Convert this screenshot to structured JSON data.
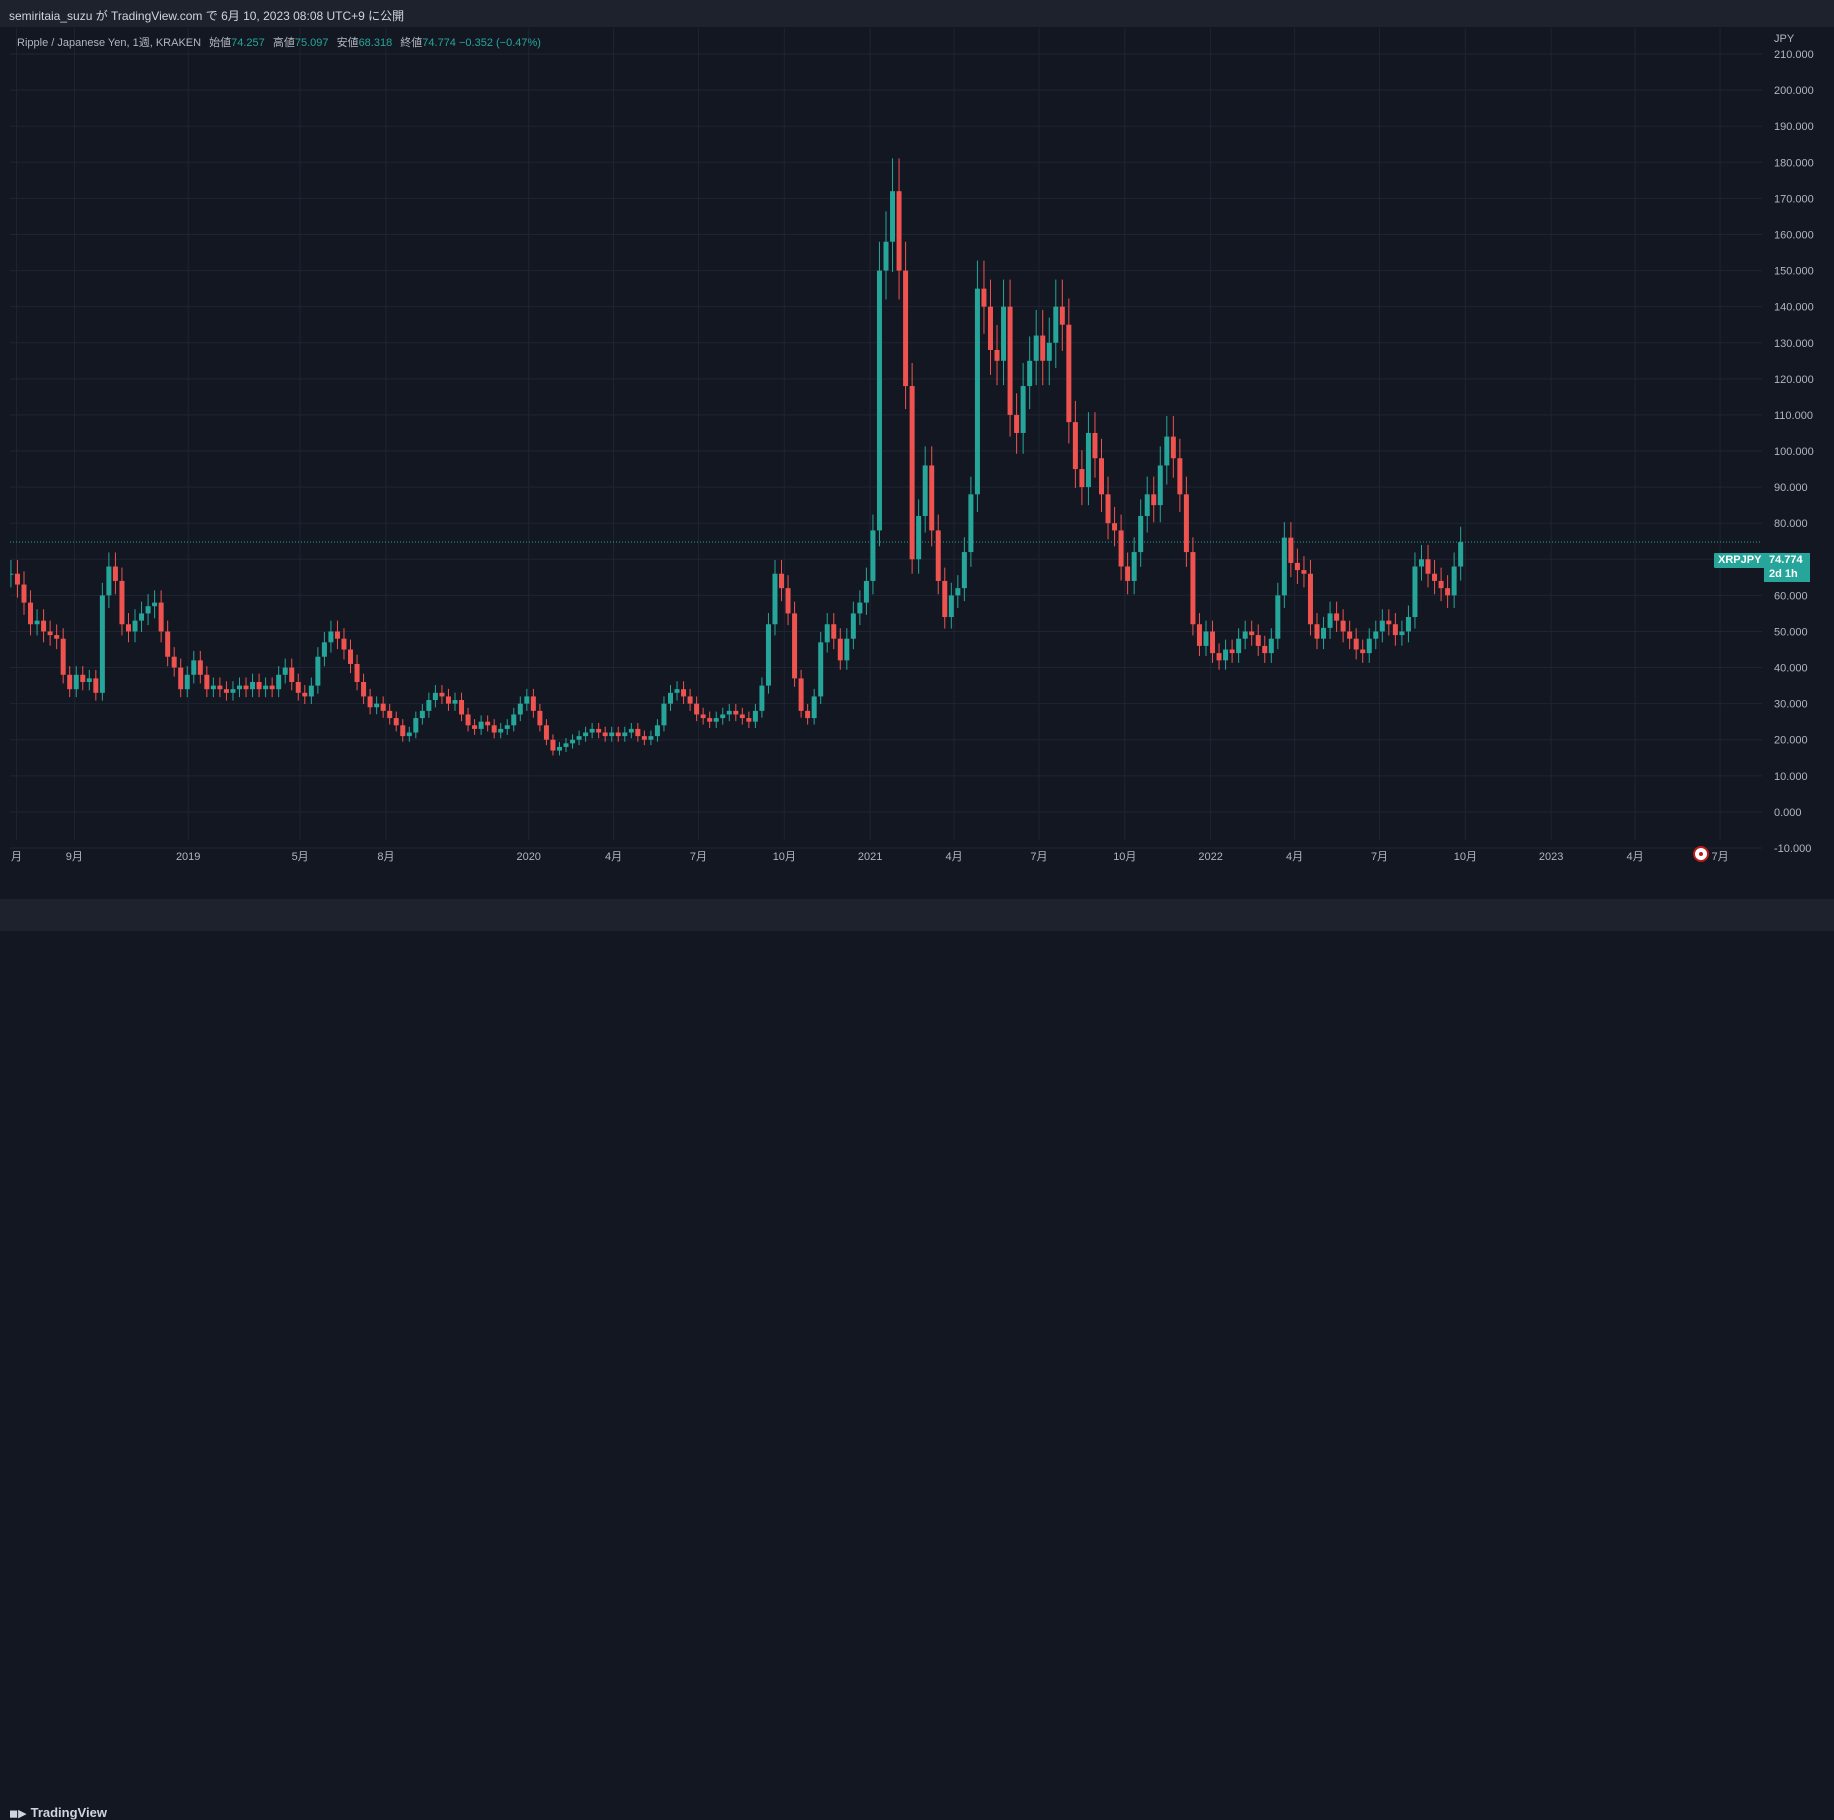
{
  "header": {
    "published_text": "semiritaia_suzu が TradingView.com で 6月 10, 2023 08:08 UTC+9 に公開"
  },
  "legend": {
    "symbol": "Ripple / Japanese Yen, 1週, KRAKEN",
    "open_label": "始値",
    "open_value": "74.257",
    "high_label": "高値",
    "high_value": "75.097",
    "low_label": "安値",
    "low_value": "68.318",
    "close_label": "終値",
    "close_value": "74.774",
    "change": "−0.352 (−0.47%)"
  },
  "price_axis": {
    "currency": "JPY"
  },
  "last_price": {
    "symbol": "XRPJPY",
    "price": "74.774",
    "countdown": "2d 1h"
  },
  "footer": {
    "brand": "TradingView"
  },
  "colors": {
    "up": "#26a69a",
    "down": "#ef5350",
    "background": "#131722",
    "grid": "#1f2433",
    "text": "#b2b5be"
  },
  "chart_data": {
    "type": "candlestick",
    "interval": "1週",
    "y_range": [
      -10,
      215
    ],
    "y_ticks": [
      -10,
      0,
      10,
      20,
      30,
      40,
      50,
      60,
      70,
      80,
      90,
      100,
      110,
      120,
      130,
      140,
      150,
      160,
      170,
      180,
      190,
      200,
      210
    ],
    "y_tick_labels": [
      "-10.000",
      "0.000",
      "10.000",
      "20.000",
      "30.000",
      "40.000",
      "50.000",
      "60.000",
      "70.000",
      "80.000",
      "90.000",
      "100.000",
      "110.000",
      "120.000",
      "130.000",
      "140.000",
      "150.000",
      "160.000",
      "170.000",
      "180.000",
      "190.000",
      "200.000",
      "210.000"
    ],
    "x_ticks": [
      {
        "label": "月",
        "date": "2018-07-01"
      },
      {
        "label": "9月",
        "date": "2018-09-01"
      },
      {
        "label": "2019",
        "date": "2019-01-01"
      },
      {
        "label": "5月",
        "date": "2019-05-01"
      },
      {
        "label": "8月",
        "date": "2019-08-01"
      },
      {
        "label": "2020",
        "date": "2020-01-01"
      },
      {
        "label": "4月",
        "date": "2020-04-01"
      },
      {
        "label": "7月",
        "date": "2020-07-01"
      },
      {
        "label": "10月",
        "date": "2020-10-01"
      },
      {
        "label": "2021",
        "date": "2021-01-01"
      },
      {
        "label": "4月",
        "date": "2021-04-01"
      },
      {
        "label": "7月",
        "date": "2021-07-01"
      },
      {
        "label": "10月",
        "date": "2021-10-01"
      },
      {
        "label": "2022",
        "date": "2022-01-01"
      },
      {
        "label": "4月",
        "date": "2022-04-01"
      },
      {
        "label": "7月",
        "date": "2022-07-01"
      },
      {
        "label": "10月",
        "date": "2022-10-01"
      },
      {
        "label": "2023",
        "date": "2023-01-01"
      },
      {
        "label": "4月",
        "date": "2023-04-01"
      },
      {
        "label": "7月",
        "date": "2023-07-01"
      }
    ],
    "x_range": [
      "2018-06-24",
      "2023-08-15"
    ],
    "start_date": "2018-06-25",
    "closes": [
      66,
      63,
      58,
      52,
      53,
      50,
      49,
      48,
      38,
      34,
      38,
      36,
      37,
      33,
      60,
      68,
      64,
      52,
      50,
      53,
      55,
      57,
      58,
      50,
      43,
      40,
      34,
      38,
      42,
      38,
      34,
      35,
      34,
      33,
      34,
      35,
      34,
      36,
      34,
      35,
      34,
      38,
      40,
      36,
      33,
      32,
      35,
      43,
      47,
      50,
      48,
      45,
      41,
      36,
      32,
      29,
      30,
      28,
      26,
      24,
      21,
      22,
      26,
      28,
      31,
      33,
      32,
      30,
      31,
      27,
      24,
      23,
      25,
      24,
      22,
      23,
      24,
      27,
      30,
      32,
      28,
      24,
      20,
      17,
      18,
      19,
      20,
      21,
      22,
      23,
      22,
      21,
      22,
      21,
      22,
      23,
      21,
      20,
      21,
      24,
      30,
      33,
      34,
      32,
      30,
      27,
      26,
      25,
      26,
      27,
      28,
      27,
      26,
      25,
      28,
      35,
      52,
      66,
      62,
      55,
      37,
      28,
      26,
      32,
      47,
      52,
      48,
      42,
      48,
      55,
      58,
      64,
      78,
      150,
      158,
      172,
      150,
      118,
      70,
      82,
      96,
      78,
      64,
      54,
      60,
      62,
      72,
      88,
      145,
      140,
      128,
      125,
      140,
      110,
      105,
      118,
      125,
      132,
      125,
      130,
      140,
      135,
      108,
      95,
      90,
      105,
      98,
      88,
      80,
      78,
      68,
      64,
      72,
      82,
      88,
      85,
      96,
      104,
      98,
      88,
      72,
      52,
      46,
      50,
      44,
      42,
      45,
      44,
      48,
      50,
      49,
      46,
      44,
      48,
      60,
      76,
      69,
      67,
      66,
      52,
      48,
      51,
      55,
      53,
      50,
      48,
      45,
      44,
      48,
      50,
      53,
      52,
      49,
      50,
      54,
      68,
      70,
      66,
      64,
      62,
      60,
      68,
      74.774
    ]
  }
}
